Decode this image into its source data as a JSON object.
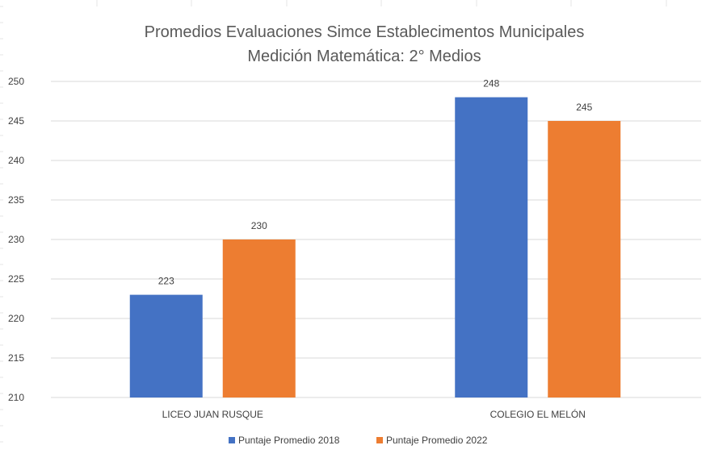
{
  "chart_data": {
    "type": "bar",
    "title": "Promedios Evaluaciones Simce Establecimentos Municipales",
    "subtitle": "Medición Matemática:  2° Medios",
    "xlabel": "",
    "ylabel": "",
    "categories": [
      "LICEO JUAN RUSQUE",
      "COLEGIO EL MELÓN"
    ],
    "series": [
      {
        "name": "Puntaje Promedio 2018",
        "values": [
          223,
          248
        ],
        "color": "#4472C4"
      },
      {
        "name": "Puntaje Promedio 2022",
        "values": [
          230,
          245
        ],
        "color": "#ED7D31"
      }
    ],
    "ylim": [
      210,
      250
    ],
    "yticks": [
      210,
      215,
      220,
      225,
      230,
      235,
      240,
      245,
      250
    ],
    "grid": true,
    "legend_position": "bottom",
    "data_labels": true,
    "gridline_color": "#D9D9D9"
  }
}
